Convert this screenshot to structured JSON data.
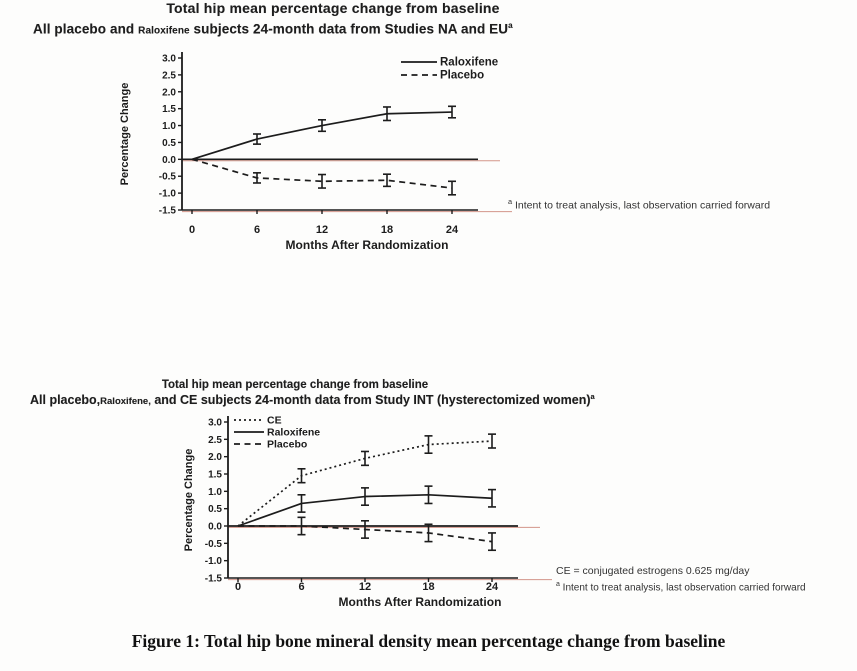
{
  "page": {
    "caption": "Figure 1: Total hip bone mineral density mean percentage change from baseline"
  },
  "colors": {
    "ink": "#1c1c1c",
    "scan_artifact": "#c06a5a"
  },
  "chart_data": [
    {
      "type": "line",
      "title": "Total hip mean percentage change from baseline",
      "subtitle": {
        "pre": "All placebo and ",
        "small": "Raloxifene",
        "post": " subjects 24-month data from Studies NA and EU",
        "sup": "a"
      },
      "xlabel": "Months After Randomization",
      "ylabel": "Percentage Change",
      "x": [
        0,
        6,
        12,
        18,
        24
      ],
      "ylim": [
        -1.5,
        3.0
      ],
      "ytick_step": 0.5,
      "grid": false,
      "zero_line": true,
      "legend_position": "top-right",
      "series": [
        {
          "name": "Raloxifene",
          "style": "solid",
          "values": [
            0,
            0.6,
            1.0,
            1.35,
            1.4
          ],
          "errors": [
            0,
            0.15,
            0.17,
            0.2,
            0.17
          ]
        },
        {
          "name": "Placebo",
          "style": "dashed",
          "values": [
            0,
            -0.55,
            -0.65,
            -0.62,
            -0.85
          ],
          "errors": [
            0,
            0.15,
            0.2,
            0.18,
            0.2
          ]
        }
      ],
      "footnotes": [
        {
          "sup": "a",
          "text": " Intent to treat analysis, last observation carried forward"
        }
      ]
    },
    {
      "type": "line",
      "title": "Total hip mean percentage change from baseline",
      "subtitle": {
        "pre": "All placebo,",
        "small": "Raloxifene,",
        "post": " and CE subjects 24-month data from Study INT (hysterectomized women)",
        "sup": "a"
      },
      "xlabel": "Months After Randomization",
      "ylabel": "Percentage Change",
      "x": [
        0,
        6,
        12,
        18,
        24
      ],
      "ylim": [
        -1.5,
        3.0
      ],
      "ytick_step": 0.5,
      "grid": false,
      "zero_line": true,
      "legend_position": "top-left",
      "series": [
        {
          "name": "CE",
          "style": "dotted",
          "values": [
            0,
            1.45,
            1.95,
            2.35,
            2.45
          ],
          "errors": [
            0,
            0.2,
            0.2,
            0.25,
            0.2
          ]
        },
        {
          "name": "Raloxifene",
          "style": "solid",
          "values": [
            0,
            0.65,
            0.85,
            0.9,
            0.8
          ],
          "errors": [
            0,
            0.25,
            0.25,
            0.25,
            0.25
          ]
        },
        {
          "name": "Placebo",
          "style": "dashed",
          "values": [
            0,
            0.0,
            -0.1,
            -0.2,
            -0.45
          ],
          "errors": [
            0,
            0.25,
            0.25,
            0.25,
            0.25
          ]
        }
      ],
      "footnotes": [
        {
          "sup": "",
          "text": "CE = conjugated estrogens 0.625 mg/day"
        },
        {
          "sup": "a",
          "text": " Intent to treat analysis, last observation carried forward"
        }
      ]
    }
  ]
}
